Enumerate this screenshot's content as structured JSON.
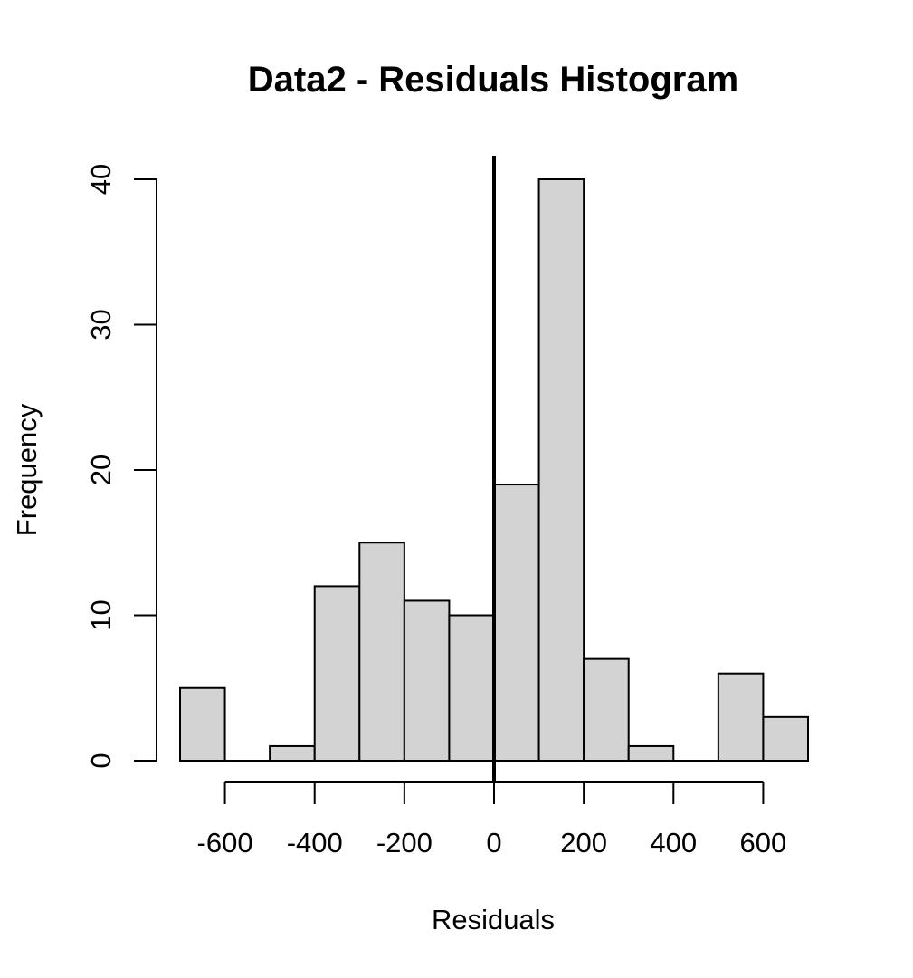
{
  "chart_data": {
    "type": "bar",
    "title": "Data2 - Residuals Histogram",
    "xlabel": "Residuals",
    "ylabel": "Frequency",
    "bin_edges": [
      -700,
      -600,
      -500,
      -400,
      -300,
      -200,
      -100,
      0,
      100,
      200,
      300,
      400,
      500,
      600,
      700
    ],
    "values": [
      5,
      0,
      1,
      12,
      15,
      11,
      10,
      19,
      40,
      7,
      1,
      0,
      6,
      3
    ],
    "xlim": [
      -700,
      700
    ],
    "ylim": [
      0,
      40
    ],
    "x_ticks": [
      -600,
      -400,
      -200,
      0,
      200,
      400,
      600
    ],
    "x_tick_labels": [
      "-600",
      "-400",
      "-200",
      "0",
      "200",
      "400",
      "600"
    ],
    "y_ticks": [
      0,
      10,
      20,
      30,
      40
    ],
    "y_tick_labels": [
      "0",
      "10",
      "20",
      "30",
      "40"
    ],
    "reference_line": {
      "x": 0,
      "orientation": "vertical"
    },
    "bar_color": "#d3d3d3",
    "edge_color": "#000000",
    "grid": false,
    "legend": "none"
  }
}
